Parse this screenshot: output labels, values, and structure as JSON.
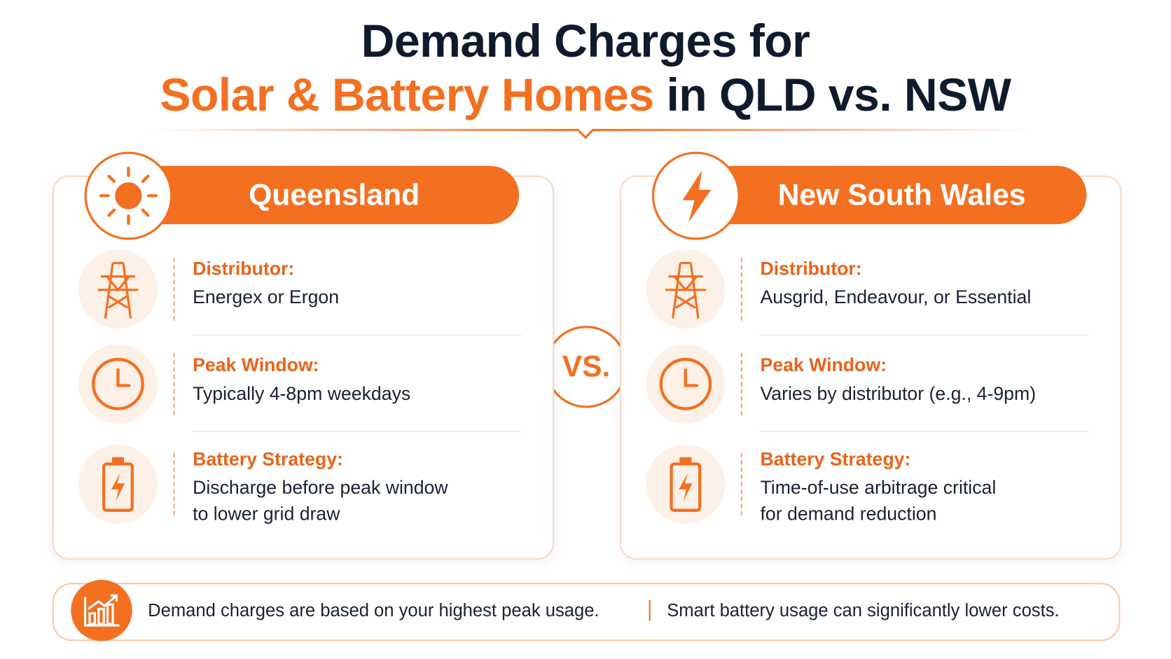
{
  "title": {
    "line1": "Demand Charges for",
    "highlight": "Solar & Battery Homes",
    "rest": "in QLD vs. NSW"
  },
  "panels": [
    {
      "name": "Queensland",
      "rows": [
        {
          "label": "Distributor:",
          "lines": [
            "Energex or Ergon"
          ]
        },
        {
          "label": "Peak Window:",
          "lines": [
            "Typically 4-8pm weekdays"
          ]
        },
        {
          "label": "Battery Strategy:",
          "lines": [
            "Discharge before peak window",
            "to lower grid draw"
          ]
        }
      ]
    },
    {
      "name": "New South Wales",
      "rows": [
        {
          "label": "Distributor:",
          "lines": [
            "Ausgrid, Endeavour, or Essential"
          ]
        },
        {
          "label": "Peak Window:",
          "lines": [
            "Varies by distributor (e.g., 4-9pm)"
          ]
        },
        {
          "label": "Battery Strategy:",
          "lines": [
            "Time-of-use arbitrage critical",
            "for demand reduction"
          ]
        }
      ]
    }
  ],
  "vs": "VS.",
  "footer": {
    "left": "Demand charges are based on your highest peak usage.",
    "right": "Smart battery usage can significantly lower costs."
  }
}
